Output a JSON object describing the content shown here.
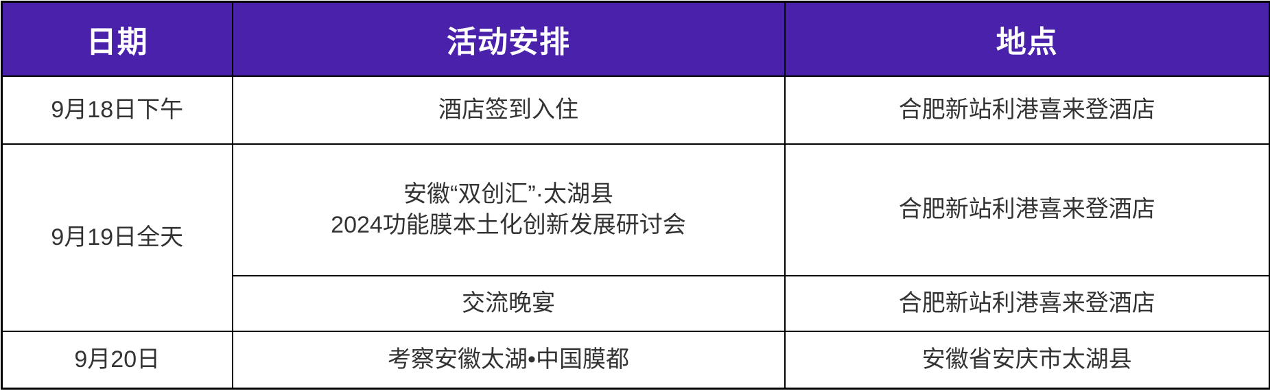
{
  "table": {
    "title": "event-schedule",
    "headers": {
      "date": "日期",
      "activity": "活动安排",
      "location": "地点"
    },
    "rows": [
      {
        "date": "9月18日下午",
        "activity": "酒店签到入住",
        "location": "合肥新站利港喜来登酒店"
      },
      {
        "date": "9月19日全天",
        "activity": "安徽“双创汇”·太湖县\n2024功能膜本土化创新发展研讨会",
        "location": "合肥新站利港喜来登酒店"
      },
      {
        "activity": "交流晚宴",
        "location": "合肥新站利港喜来登酒店"
      },
      {
        "date": "9月20日",
        "activity": "考察安徽太湖•中国膜都",
        "location": "安徽省安庆市太湖县"
      }
    ],
    "colors": {
      "header_bg": "#4A21AB",
      "header_text": "#FFFFFF",
      "body_text": "#333333",
      "border": "#000000",
      "body_bg": "#FFFFFF"
    }
  }
}
